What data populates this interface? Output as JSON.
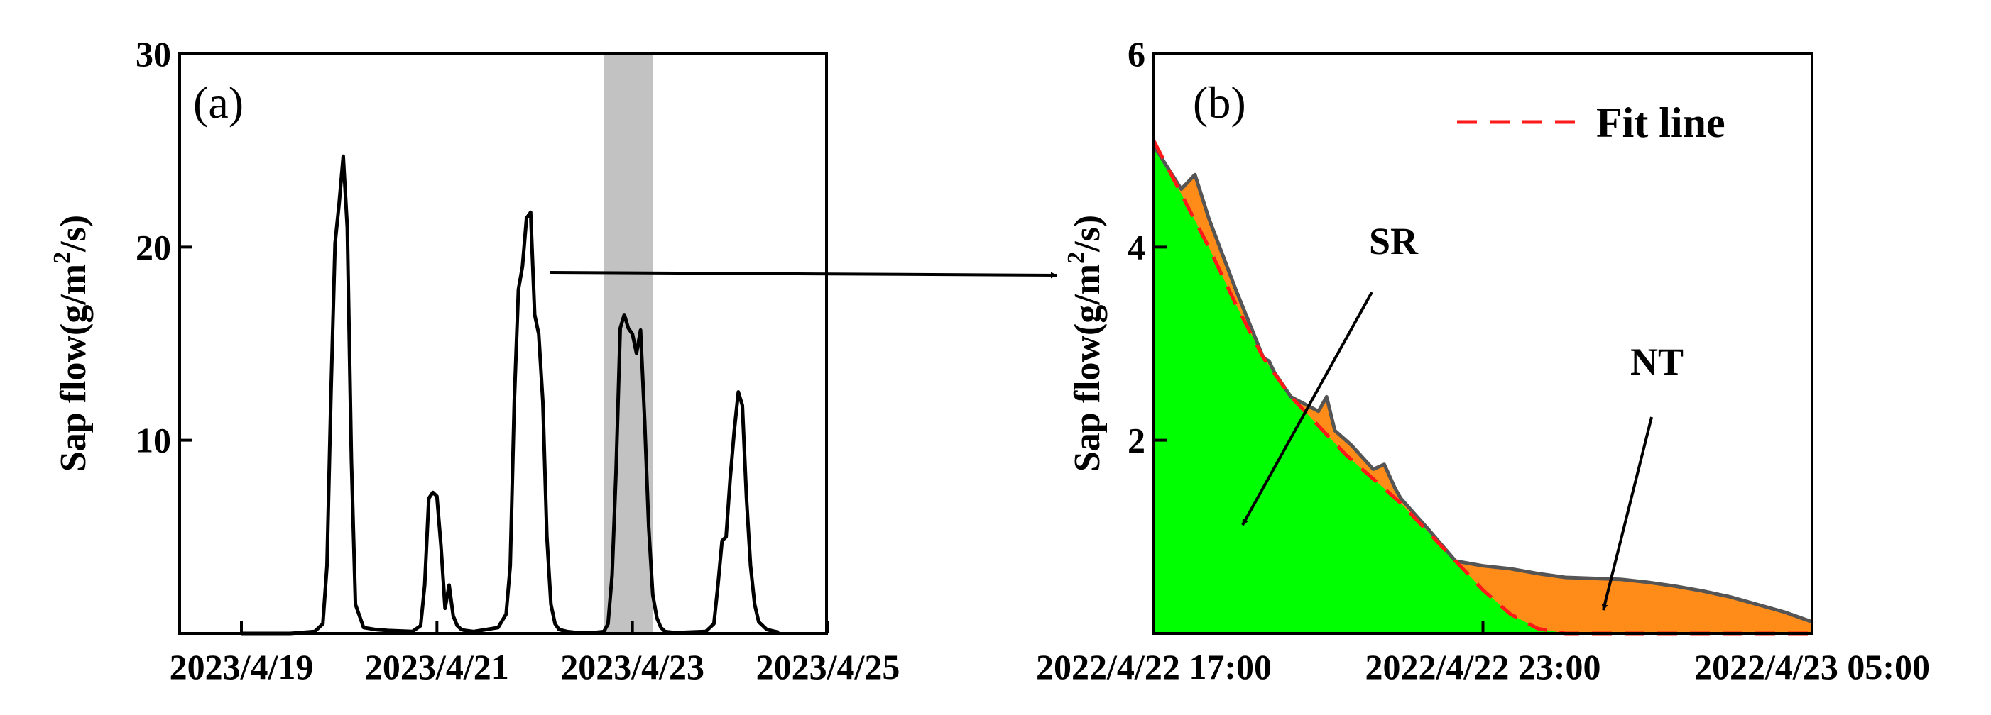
{
  "chart_data": [
    {
      "type": "line",
      "panel_label": "(a)",
      "ylabel": "Sap flow(g/m",
      "ylabel_sup": "2",
      "ylabel_end": "/s)",
      "ylim": [
        0,
        30
      ],
      "y_ticks": [
        "30",
        "20",
        "10"
      ],
      "x_ticks": [
        "2023/4/19",
        "2023/4/21",
        "2023/4/23",
        "2023/4/25"
      ],
      "highlight_window": [
        "2023/4/22 17:00",
        "2023/4/23 05:00"
      ],
      "series": [
        {
          "x": [
            "2023/4/19 00:00",
            "2023/4/19 12:00",
            "2023/4/19 18:00",
            "2023/4/19 20:00",
            "2023/4/19 21:00",
            "2023/4/19 22:00",
            "2023/4/19 23:00",
            "2023/4/20 00:00",
            "2023/4/20 01:00",
            "2023/4/20 02:00",
            "2023/4/20 03:00",
            "2023/4/20 04:00",
            "2023/4/20 06:00",
            "2023/4/20 09:00",
            "2023/4/20 12:00",
            "2023/4/20 18:00",
            "2023/4/20 20:00",
            "2023/4/20 21:00",
            "2023/4/20 22:00",
            "2023/4/20 23:00",
            "2023/4/21 00:00",
            "2023/4/21 01:00",
            "2023/4/21 02:00",
            "2023/4/21 03:00",
            "2023/4/21 04:00",
            "2023/4/21 05:00",
            "2023/4/21 06:00",
            "2023/4/21 07:00",
            "2023/4/21 09:00",
            "2023/4/21 12:00",
            "2023/4/21 15:00",
            "2023/4/21 17:00",
            "2023/4/21 18:00",
            "2023/4/21 19:00",
            "2023/4/21 20:00",
            "2023/4/21 21:00",
            "2023/4/21 22:00",
            "2023/4/21 23:00",
            "2023/4/22 00:00",
            "2023/4/22 01:00",
            "2023/4/22 02:00",
            "2023/4/22 03:00",
            "2023/4/22 04:00",
            "2023/4/22 05:00",
            "2023/4/22 06:00",
            "2023/4/22 08:00",
            "2023/4/22 10:00",
            "2023/4/22 12:00",
            "2023/4/22 15:00",
            "2023/4/22 17:00",
            "2023/4/22 18:00",
            "2023/4/22 19:00",
            "2023/4/22 20:00",
            "2023/4/22 21:00",
            "2023/4/22 22:00",
            "2023/4/22 23:00",
            "2023/4/23 00:00",
            "2023/4/23 01:00",
            "2023/4/23 02:00",
            "2023/4/23 03:00",
            "2023/4/23 04:00",
            "2023/4/23 05:00",
            "2023/4/23 06:00",
            "2023/4/23 07:00",
            "2023/4/23 08:00",
            "2023/4/23 10:00",
            "2023/4/23 12:00",
            "2023/4/23 18:00",
            "2023/4/23 20:00",
            "2023/4/23 21:00",
            "2023/4/23 22:00",
            "2023/4/23 23:00",
            "2023/4/24 00:00",
            "2023/4/24 01:00",
            "2023/4/24 02:00",
            "2023/4/24 03:00",
            "2023/4/24 04:00",
            "2023/4/24 05:00",
            "2023/4/24 06:00",
            "2023/4/24 07:00",
            "2023/4/24 09:00",
            "2023/4/24 12:00"
          ],
          "y": [
            0,
            0,
            0.1,
            0.5,
            3.5,
            12.5,
            20.2,
            22.3,
            24.7,
            21.0,
            9.0,
            1.5,
            0.3,
            0.2,
            0.15,
            0.1,
            0.4,
            2.5,
            7.0,
            7.3,
            7.1,
            4.5,
            1.3,
            2.5,
            0.9,
            0.4,
            0.2,
            0.15,
            0.1,
            0.2,
            0.3,
            1.0,
            3.5,
            12.0,
            17.8,
            19.0,
            21.5,
            21.8,
            16.5,
            15.5,
            12.0,
            5.0,
            1.5,
            0.5,
            0.2,
            0.1,
            0.05,
            0.05,
            0.05,
            0.1,
            0.5,
            3.0,
            8.5,
            15.8,
            16.5,
            15.8,
            15.5,
            14.5,
            15.7,
            11.0,
            5.5,
            2.0,
            0.8,
            0.3,
            0.1,
            0.05,
            0.05,
            0.1,
            0.5,
            2.5,
            4.8,
            5.0,
            8.0,
            10.5,
            12.5,
            11.8,
            7.0,
            3.5,
            1.5,
            0.6,
            0.2,
            0.05
          ]
        }
      ]
    },
    {
      "type": "area",
      "panel_label": "(b)",
      "ylabel": "Sap flow(g/m",
      "ylabel_sup": "2",
      "ylabel_end": "/s)",
      "ylim": [
        0,
        6
      ],
      "y_ticks": [
        "6",
        "4",
        "2"
      ],
      "x_ticks": [
        "2022/4/22 17:00",
        "2022/4/22 23:00",
        "2022/4/23 05:00"
      ],
      "legend": "Fit line",
      "annotations": [
        "SR",
        "NT"
      ],
      "series": [
        {
          "x_hours_since_1700": [
            0,
            0.5,
            0.75,
            1.0,
            1.5,
            2.0,
            2.1,
            2.2,
            2.5,
            3.0,
            3.15,
            3.3,
            3.6,
            4.0,
            4.2,
            4.4,
            4.5,
            5.0,
            5.5,
            6.0,
            6.5,
            7.0,
            7.5,
            8.0,
            8.5,
            9.0,
            9.5,
            10.0,
            10.5,
            11.0,
            11.5,
            12.0
          ],
          "y": [
            5.05,
            4.6,
            4.75,
            4.3,
            3.55,
            2.85,
            2.82,
            2.7,
            2.45,
            2.3,
            2.45,
            2.1,
            1.95,
            1.7,
            1.75,
            1.5,
            1.4,
            1.08,
            0.75,
            0.7,
            0.67,
            0.62,
            0.58,
            0.57,
            0.56,
            0.53,
            0.49,
            0.44,
            0.38,
            0.3,
            0.22,
            0.12
          ]
        },
        {
          "name": "Fit line",
          "x_hours_since_1700": [
            0,
            0.5,
            1.0,
            1.5,
            2.0,
            2.5,
            3.0,
            3.5,
            4.0,
            4.5,
            5.0,
            5.5,
            6.0,
            6.5,
            7.0,
            7.5,
            8.0,
            8.5,
            9.0,
            10.0,
            11.0,
            12.0
          ],
          "y": [
            5.1,
            4.55,
            4.0,
            3.4,
            2.85,
            2.45,
            2.15,
            1.85,
            1.6,
            1.35,
            1.05,
            0.75,
            0.45,
            0.2,
            0.05,
            0.0,
            0.0,
            0.0,
            0.0,
            0.0,
            0.0,
            0.0
          ]
        }
      ],
      "colors": {
        "sr_fill": "#00ff00",
        "nt_fill": "#ff8c19",
        "observed_line": "#555555",
        "fit_line": "#ff1a1a"
      }
    }
  ]
}
